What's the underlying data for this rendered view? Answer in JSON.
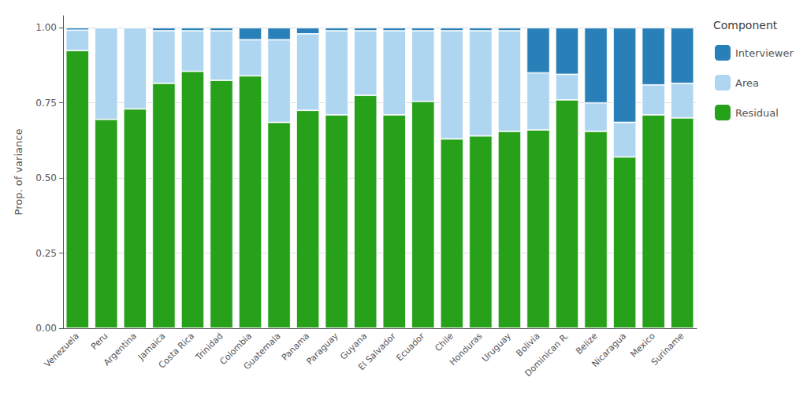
{
  "chart_data": {
    "type": "bar",
    "stacked": true,
    "ylabel": "Prop. of variance",
    "legend_title": "Component",
    "legend": "right",
    "grid": true,
    "categories": [
      "Venezuela",
      "Peru",
      "Argentina",
      "Jamaica",
      "Costa Rica",
      "Trinidad",
      "Colombia",
      "Guatemala",
      "Panama",
      "Paraguay",
      "Guyana",
      "El Salvador",
      "Ecuador",
      "Chile",
      "Honduras",
      "Uruguay",
      "Bolivia",
      "Dominican R.",
      "Belize",
      "Nicaragua",
      "Mexico",
      "Suriname"
    ],
    "series": [
      {
        "name": "Residual",
        "color": "#27a01a",
        "values": [
          0.924,
          0.695,
          0.73,
          0.815,
          0.855,
          0.825,
          0.84,
          0.685,
          0.725,
          0.71,
          0.775,
          0.71,
          0.755,
          0.63,
          0.64,
          0.655,
          0.66,
          0.76,
          0.655,
          0.57,
          0.71,
          0.7
        ]
      },
      {
        "name": "Area",
        "color": "#aed6f1",
        "values": [
          0.068,
          0.305,
          0.27,
          0.175,
          0.135,
          0.165,
          0.12,
          0.275,
          0.255,
          0.28,
          0.215,
          0.28,
          0.235,
          0.36,
          0.35,
          0.335,
          0.19,
          0.085,
          0.095,
          0.115,
          0.1,
          0.115
        ]
      },
      {
        "name": "Interviewer",
        "color": "#2980b9",
        "values": [
          0.008,
          0.0,
          0.0,
          0.01,
          0.01,
          0.01,
          0.04,
          0.04,
          0.02,
          0.01,
          0.01,
          0.01,
          0.01,
          0.01,
          0.01,
          0.01,
          0.15,
          0.155,
          0.25,
          0.315,
          0.19,
          0.185
        ]
      }
    ],
    "ylim": [
      0,
      1.04
    ],
    "yticks": [
      {
        "value": 0,
        "label": "0.00"
      },
      {
        "value": 0.25,
        "label": "0.25"
      },
      {
        "value": 0.5,
        "label": "0.50"
      },
      {
        "value": 0.75,
        "label": "0.75"
      },
      {
        "value": 1,
        "label": "1.00"
      }
    ]
  }
}
